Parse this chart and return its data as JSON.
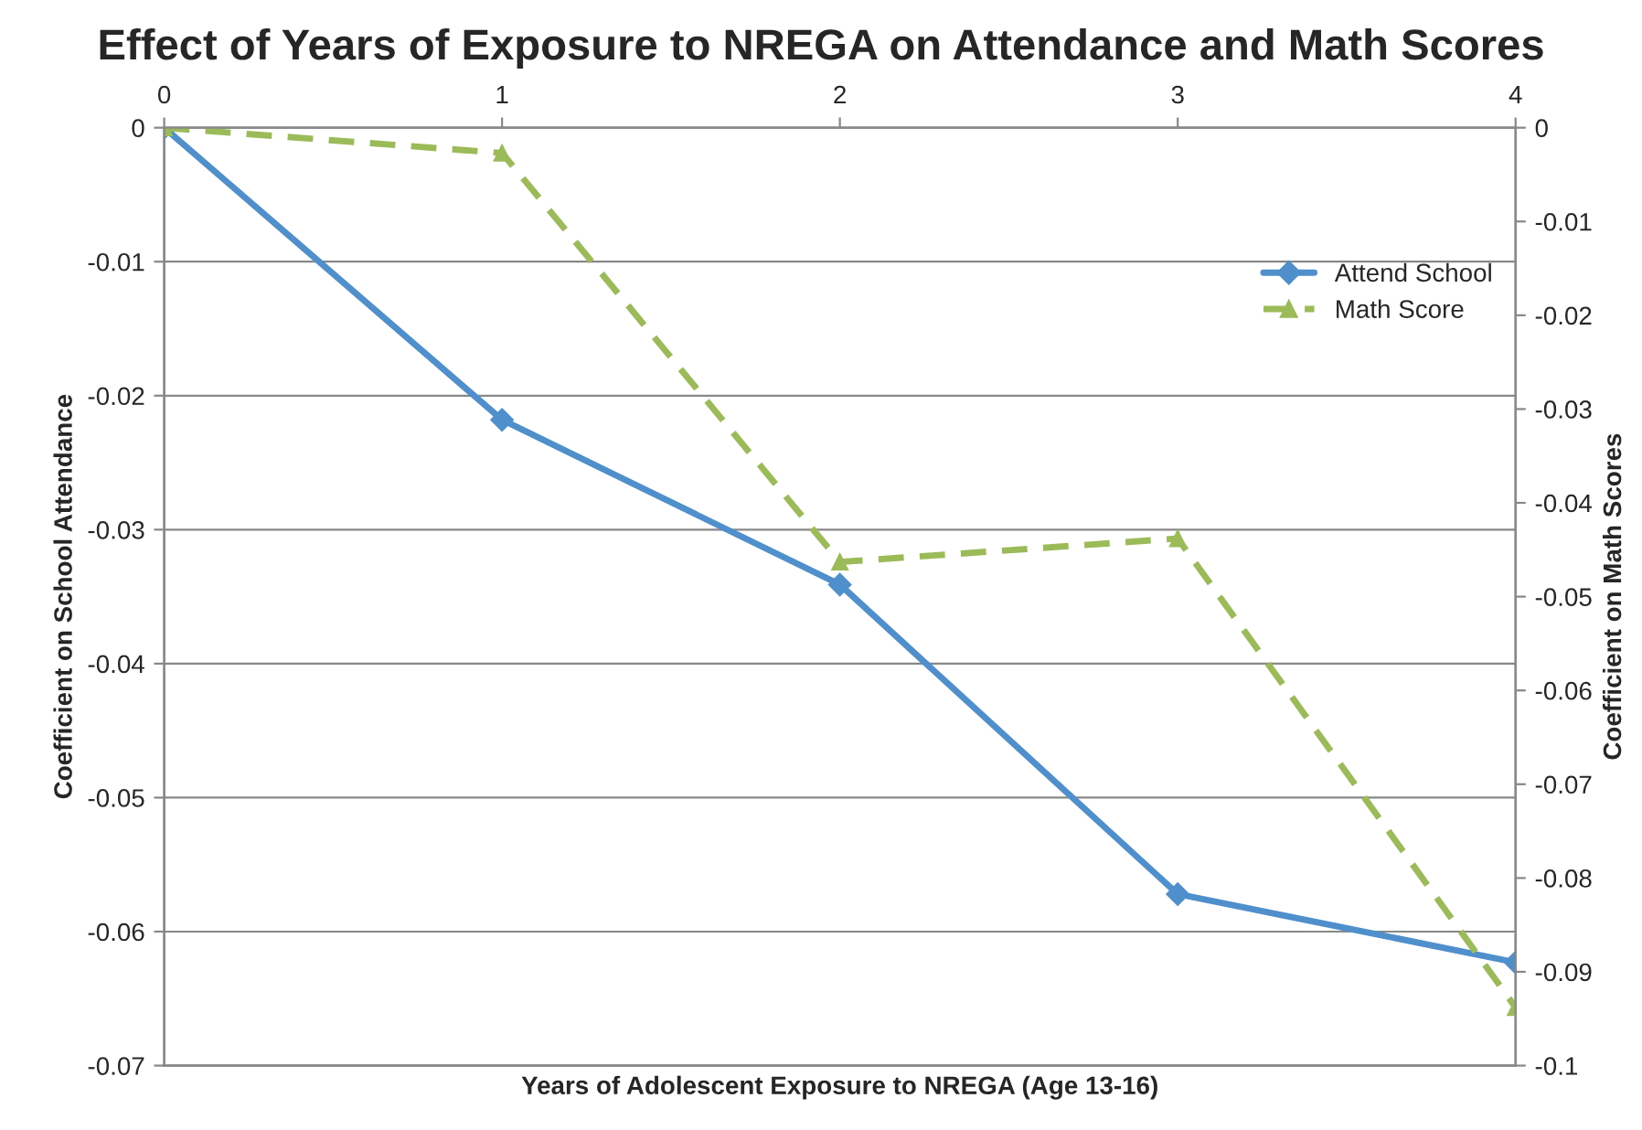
{
  "chart_data": {
    "type": "line",
    "title": "Effect of Years of Exposure to NREGA on Attendance and Math Scores",
    "xlabel": "Years of Adolescent Exposure to NREGA (Age 13-16)",
    "ylabel": "Coefficient on School Attendance",
    "y2label": "Coefficient on Math Scores",
    "x": [
      0,
      1,
      2,
      3,
      4
    ],
    "series": [
      {
        "name": "Attend School",
        "color": "#4f8fcc",
        "values": [
          0,
          -0.0218,
          -0.0341,
          -0.0572,
          -0.0623
        ],
        "marker": "diamond",
        "line_style": "solid"
      },
      {
        "name": "Math Score",
        "color": "#9bbb59",
        "values": [
          0,
          -0.0027,
          -0.0463,
          -0.0438,
          -0.0938
        ],
        "marker": "triangle",
        "line_style": "dashed",
        "axis": "y2"
      }
    ],
    "xlim": [
      0,
      4
    ],
    "xticks": [
      0,
      1,
      2,
      3,
      4
    ],
    "ylim": [
      -0.07,
      0
    ],
    "yticks": [
      -0.07,
      -0.06,
      -0.05,
      -0.04,
      -0.03,
      -0.02,
      -0.01,
      0
    ],
    "y2lim": [
      -0.1,
      0
    ],
    "y2ticks": [
      -0.1,
      -0.09,
      -0.08,
      -0.07,
      -0.06,
      -0.05,
      -0.04,
      -0.03,
      -0.02,
      -0.01,
      0
    ],
    "grid": "y",
    "legend": "top right"
  }
}
